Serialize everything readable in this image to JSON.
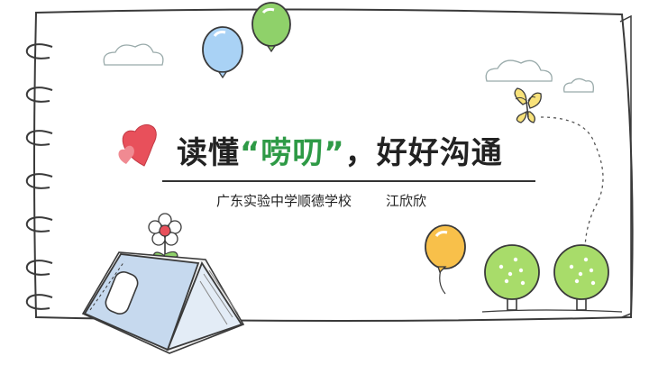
{
  "title": {
    "part1": "读懂",
    "quoted": "“唠叨”",
    "part2": "，好好沟通"
  },
  "subtitle": {
    "school": "广东实验中学顺德学校",
    "author": "江欣欣"
  },
  "decorations": [
    "spiral-binding",
    "heart-icon",
    "balloon-icon",
    "cloud-icon",
    "butterfly-icon",
    "tree-icon",
    "book-icon",
    "flower-icon"
  ],
  "colors": {
    "accent_green": "#2e9a46",
    "heart_red": "#e8505b",
    "balloon_blue": "#a9d2f5",
    "balloon_green": "#8fd16a",
    "balloon_orange": "#f8c04a",
    "tree_green": "#a8dc6a",
    "book_blue": "#c6d9ee",
    "butterfly_yellow": "#f8e27a"
  }
}
